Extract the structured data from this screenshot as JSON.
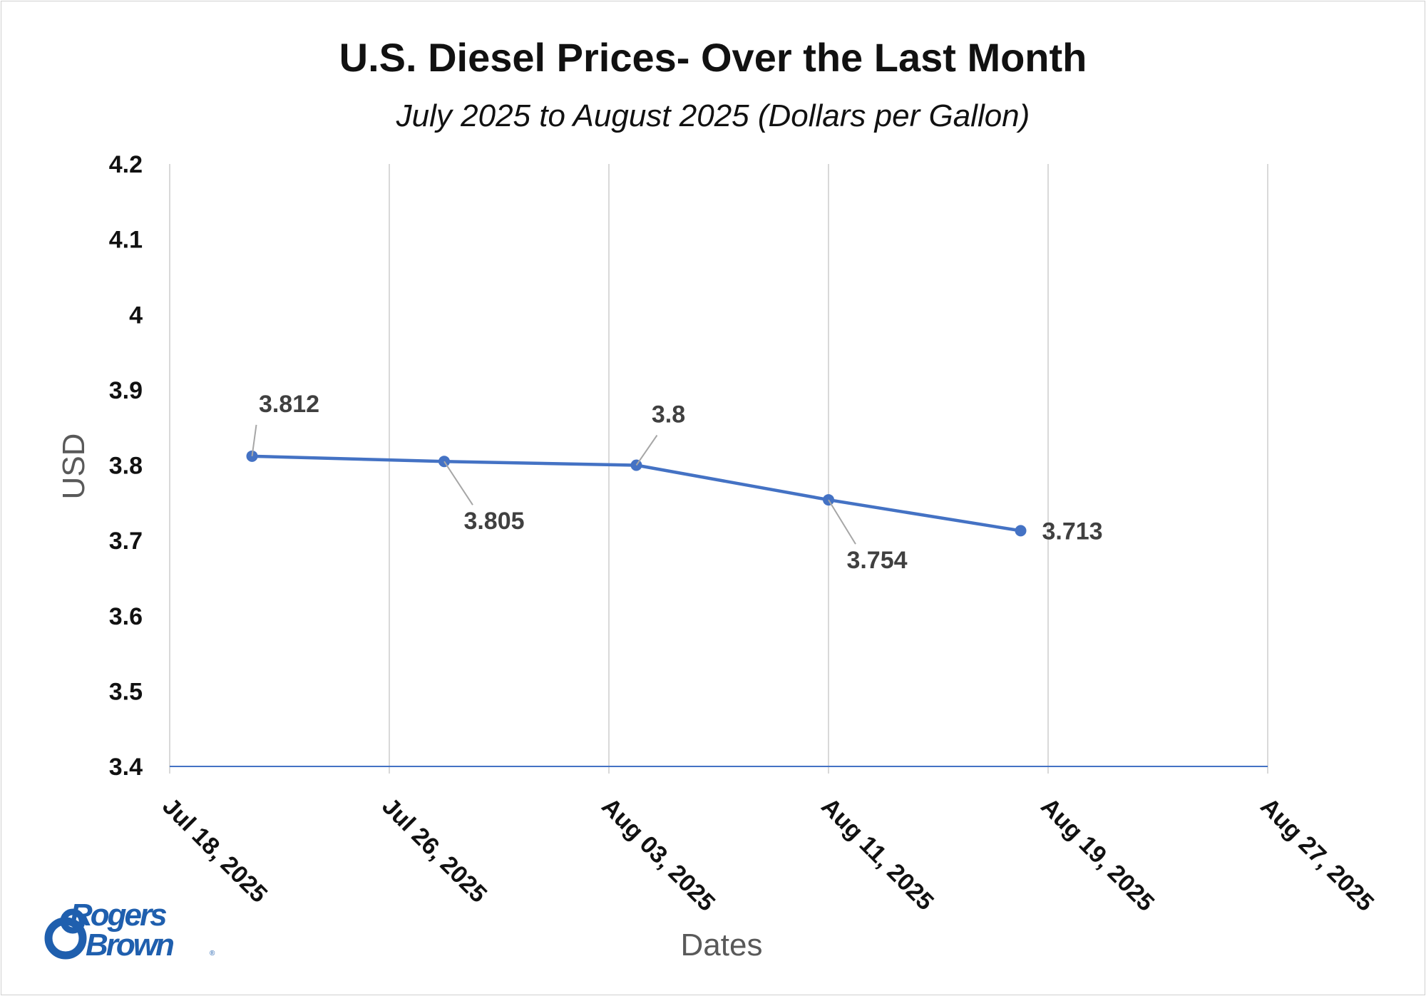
{
  "chart_data": {
    "type": "line",
    "title": "U.S. Diesel Prices- Over the Last Month",
    "subtitle": "July 2025 to August 2025 (Dollars per Gallon)",
    "xlabel": "Dates",
    "ylabel": "USD",
    "x_tick_labels": [
      "Jul 18, 2025",
      "Jul 26, 2025",
      "Aug 03, 2025",
      "Aug 11, 2025",
      "Aug 19, 2025",
      "Aug 27, 2025"
    ],
    "y_tick_labels": [
      "4.2",
      "4.1",
      "4",
      "3.9",
      "3.8",
      "3.7",
      "3.6",
      "3.5",
      "3.4"
    ],
    "ylim": [
      3.4,
      4.2
    ],
    "xlim": [
      "2025-07-18",
      "2025-08-27"
    ],
    "grid": "vertical",
    "series": [
      {
        "color": "#4472c4",
        "x": [
          "2025-07-21",
          "2025-07-28",
          "2025-08-04",
          "2025-08-11",
          "2025-08-18"
        ],
        "values": [
          3.812,
          3.805,
          3.8,
          3.754,
          3.713
        ],
        "data_labels": [
          "3.812",
          "3.805",
          "3.8",
          "3.754",
          "3.713"
        ]
      }
    ]
  },
  "logo": {
    "text_line1": "Rogers",
    "text_line2": "Brown",
    "color": "#1f5fae"
  }
}
